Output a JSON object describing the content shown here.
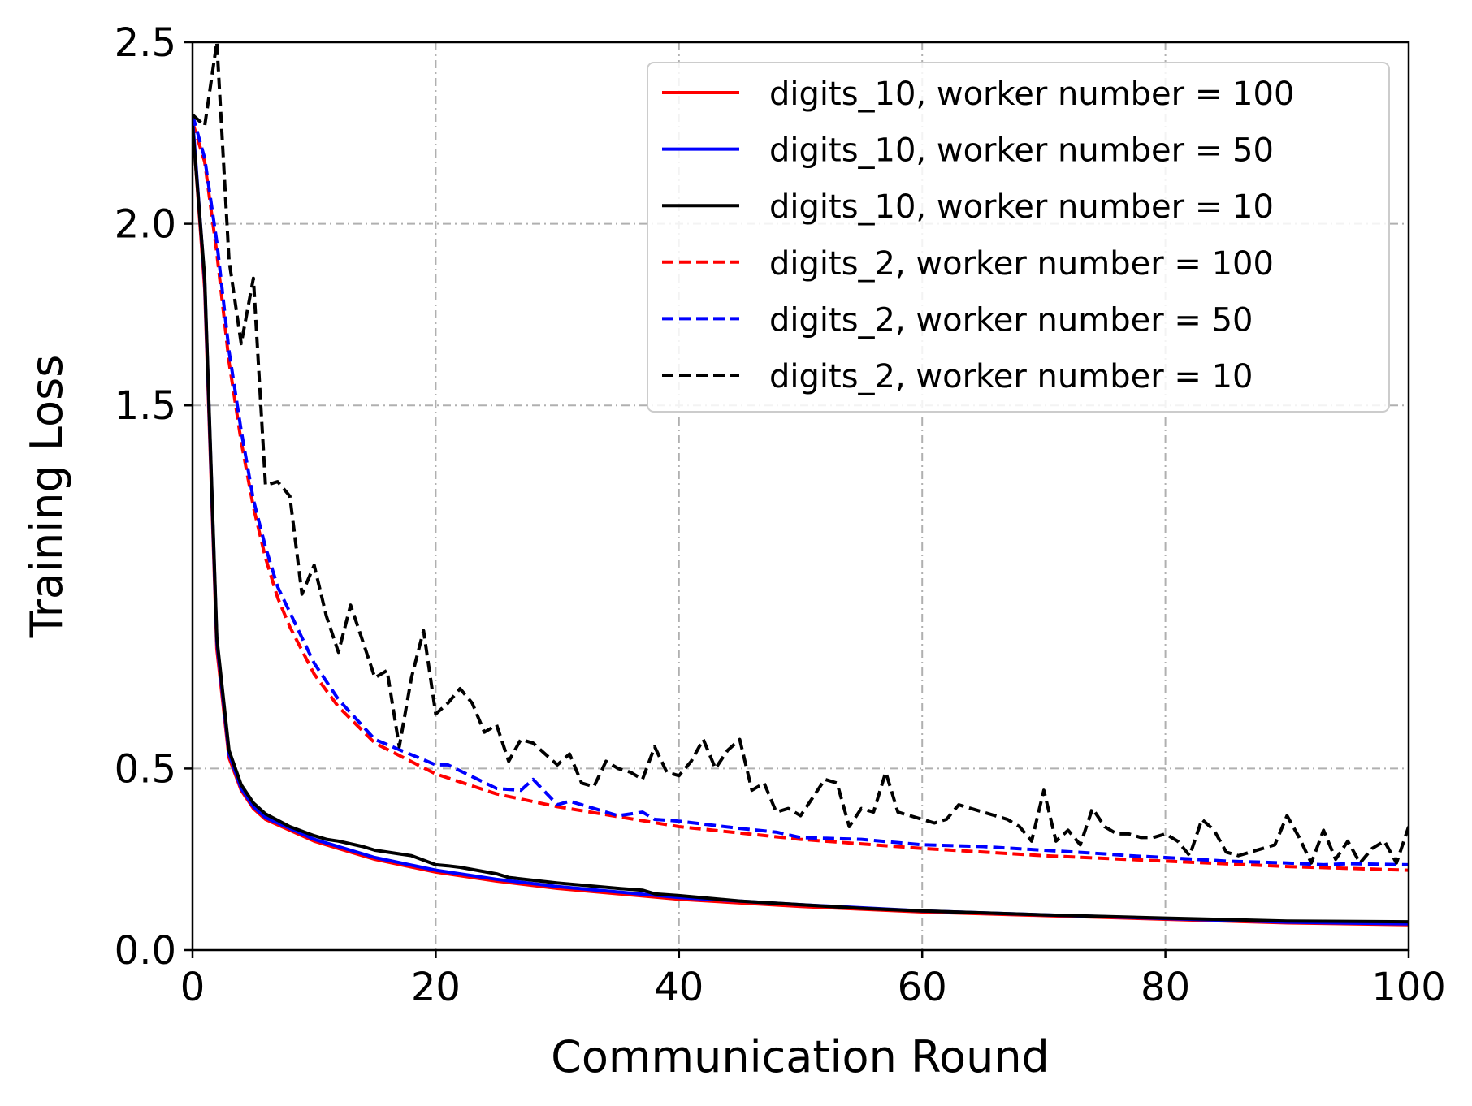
{
  "chart_data": {
    "type": "line",
    "title": "",
    "xlabel": "Communication Round",
    "ylabel": "Training Loss",
    "xlim": [
      0,
      100
    ],
    "ylim": [
      0,
      2.5
    ],
    "xticks": [
      0,
      20,
      40,
      60,
      80,
      100
    ],
    "xtick_labels": [
      "0",
      "20",
      "40",
      "60",
      "80",
      "100"
    ],
    "yticks": [
      0,
      0.5,
      1.5,
      2.0,
      2.5
    ],
    "ytick_labels": [
      "0.0",
      "0.5",
      "1.5",
      "2.0",
      "2.5"
    ],
    "grid": true,
    "legend_position": "top-right",
    "series": [
      {
        "name": "digits_10, worker number = 100",
        "color": "#ff0000",
        "dash": "solid",
        "x": [
          0,
          1,
          2,
          3,
          4,
          5,
          6,
          8,
          10,
          12,
          15,
          20,
          25,
          30,
          40,
          50,
          60,
          70,
          80,
          90,
          100
        ],
        "y": [
          2.28,
          1.82,
          0.83,
          0.53,
          0.44,
          0.39,
          0.36,
          0.33,
          0.3,
          0.28,
          0.25,
          0.215,
          0.19,
          0.17,
          0.14,
          0.12,
          0.105,
          0.095,
          0.085,
          0.075,
          0.07
        ]
      },
      {
        "name": "digits_10, worker number = 50",
        "color": "#0000ff",
        "dash": "solid",
        "x": [
          0,
          1,
          2,
          3,
          4,
          5,
          6,
          8,
          10,
          12,
          15,
          20,
          25,
          30,
          40,
          50,
          60,
          70,
          80,
          90,
          100
        ],
        "y": [
          2.29,
          1.84,
          0.85,
          0.54,
          0.445,
          0.395,
          0.365,
          0.335,
          0.305,
          0.285,
          0.255,
          0.22,
          0.195,
          0.175,
          0.145,
          0.125,
          0.108,
          0.097,
          0.087,
          0.077,
          0.072
        ]
      },
      {
        "name": "digits_10, worker number = 10",
        "color": "#000000",
        "dash": "solid",
        "x": [
          0,
          1,
          2,
          3,
          4,
          5,
          6,
          8,
          10,
          11,
          12,
          14,
          15,
          17,
          18,
          20,
          21,
          22,
          25,
          26,
          30,
          35,
          37,
          38,
          40,
          45,
          50,
          55,
          60,
          70,
          80,
          90,
          100
        ],
        "y": [
          2.27,
          1.85,
          0.86,
          0.55,
          0.455,
          0.405,
          0.375,
          0.34,
          0.315,
          0.305,
          0.3,
          0.285,
          0.275,
          0.265,
          0.26,
          0.235,
          0.232,
          0.228,
          0.21,
          0.2,
          0.185,
          0.17,
          0.165,
          0.155,
          0.15,
          0.135,
          0.125,
          0.115,
          0.108,
          0.097,
          0.088,
          0.08,
          0.078
        ]
      },
      {
        "name": "digits_2, worker number = 100",
        "color": "#ff0000",
        "dash": "dashed",
        "x": [
          0,
          1,
          2,
          3,
          4,
          5,
          6,
          7,
          8,
          10,
          12,
          15,
          20,
          25,
          30,
          40,
          50,
          60,
          70,
          80,
          90,
          100
        ],
        "y": [
          2.28,
          2.17,
          1.92,
          1.62,
          1.4,
          1.22,
          1.08,
          0.97,
          0.89,
          0.76,
          0.67,
          0.57,
          0.485,
          0.43,
          0.395,
          0.34,
          0.305,
          0.28,
          0.26,
          0.245,
          0.23,
          0.22
        ]
      },
      {
        "name": "digits_2, worker number = 50",
        "color": "#0000ff",
        "dash": "dashed",
        "x": [
          0,
          1,
          2,
          3,
          4,
          5,
          6,
          7,
          8,
          10,
          12,
          15,
          20,
          21,
          25,
          27,
          28,
          30,
          31,
          35,
          37,
          38,
          40,
          45,
          48,
          50,
          55,
          60,
          65,
          70,
          75,
          77,
          80,
          85,
          90,
          93,
          95,
          100
        ],
        "y": [
          2.3,
          2.18,
          1.95,
          1.65,
          1.43,
          1.24,
          1.11,
          1.0,
          0.93,
          0.79,
          0.69,
          0.58,
          0.51,
          0.51,
          0.445,
          0.44,
          0.47,
          0.4,
          0.41,
          0.37,
          0.38,
          0.36,
          0.355,
          0.335,
          0.325,
          0.31,
          0.305,
          0.29,
          0.285,
          0.275,
          0.265,
          0.26,
          0.255,
          0.245,
          0.24,
          0.235,
          0.238,
          0.235
        ]
      },
      {
        "name": "digits_2, worker number = 10",
        "color": "#000000",
        "dash": "dashed",
        "x": [
          0,
          1,
          2,
          3,
          4,
          5,
          6,
          7,
          8,
          9,
          10,
          11,
          12,
          13,
          14,
          15,
          16,
          17,
          18,
          19,
          20,
          21,
          22,
          23,
          24,
          25,
          26,
          27,
          28,
          29,
          30,
          31,
          32,
          33,
          34,
          35,
          36,
          37,
          38,
          39,
          40,
          41,
          42,
          43,
          44,
          45,
          46,
          47,
          48,
          49,
          50,
          51,
          52,
          53,
          54,
          55,
          56,
          57,
          58,
          59,
          60,
          61,
          62,
          63,
          64,
          65,
          66,
          67,
          68,
          69,
          70,
          71,
          72,
          73,
          74,
          75,
          76,
          77,
          78,
          79,
          80,
          81,
          82,
          83,
          84,
          85,
          86,
          87,
          88,
          89,
          90,
          91,
          92,
          93,
          94,
          95,
          96,
          97,
          98,
          99,
          100
        ],
        "y": [
          2.3,
          2.27,
          2.5,
          1.9,
          1.67,
          1.85,
          1.28,
          1.29,
          1.25,
          0.98,
          1.06,
          0.92,
          0.82,
          0.95,
          0.85,
          0.75,
          0.77,
          0.56,
          0.75,
          0.88,
          0.65,
          0.68,
          0.72,
          0.68,
          0.6,
          0.62,
          0.52,
          0.58,
          0.57,
          0.54,
          0.51,
          0.54,
          0.46,
          0.45,
          0.52,
          0.5,
          0.49,
          0.47,
          0.56,
          0.49,
          0.48,
          0.52,
          0.58,
          0.5,
          0.55,
          0.58,
          0.44,
          0.46,
          0.38,
          0.39,
          0.37,
          0.42,
          0.47,
          0.46,
          0.34,
          0.39,
          0.38,
          0.49,
          0.38,
          0.37,
          0.36,
          0.35,
          0.36,
          0.4,
          0.39,
          0.38,
          0.37,
          0.36,
          0.34,
          0.3,
          0.44,
          0.3,
          0.33,
          0.29,
          0.39,
          0.34,
          0.32,
          0.32,
          0.31,
          0.31,
          0.32,
          0.3,
          0.26,
          0.36,
          0.33,
          0.27,
          0.26,
          0.27,
          0.28,
          0.29,
          0.37,
          0.31,
          0.24,
          0.33,
          0.25,
          0.3,
          0.24,
          0.28,
          0.3,
          0.24,
          0.34
        ]
      }
    ]
  }
}
